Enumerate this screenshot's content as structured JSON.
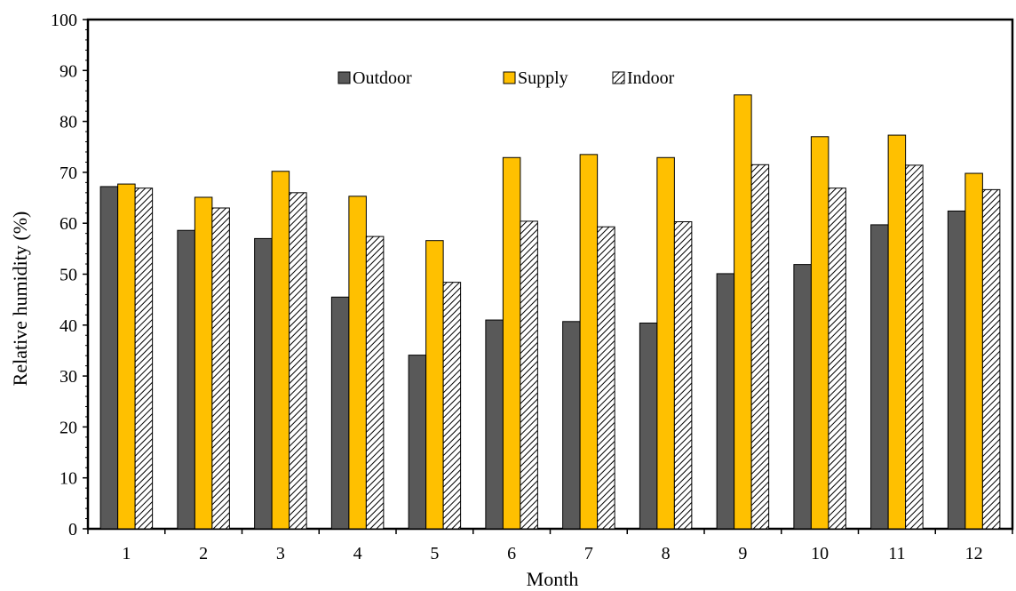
{
  "chart_data": {
    "type": "bar",
    "title": "",
    "xlabel": "Month",
    "ylabel": "Relative humidity (%)",
    "ylim": [
      0,
      100
    ],
    "yticks": [
      0,
      10,
      20,
      30,
      40,
      50,
      60,
      70,
      80,
      90,
      100
    ],
    "grid": false,
    "legend_position": "top-center",
    "categories": [
      "1",
      "2",
      "3",
      "4",
      "5",
      "6",
      "7",
      "8",
      "9",
      "10",
      "11",
      "12"
    ],
    "series": [
      {
        "name": "Outdoor",
        "color": "#595959",
        "pattern": "solid",
        "values": [
          67.2,
          58.6,
          57.0,
          45.5,
          34.1,
          41.0,
          40.7,
          40.4,
          50.1,
          51.9,
          59.7,
          62.4
        ]
      },
      {
        "name": "Supply",
        "color": "#FFC000",
        "pattern": "solid",
        "values": [
          67.7,
          65.1,
          70.2,
          65.3,
          56.6,
          72.9,
          73.5,
          72.9,
          85.2,
          77.0,
          77.3,
          69.8
        ]
      },
      {
        "name": "Indoor",
        "color": "#ffffff",
        "pattern": "diagonal-hatch",
        "values": [
          66.9,
          63.0,
          66.0,
          57.4,
          48.4,
          60.4,
          59.3,
          60.3,
          71.5,
          66.9,
          71.4,
          66.6
        ]
      }
    ]
  }
}
